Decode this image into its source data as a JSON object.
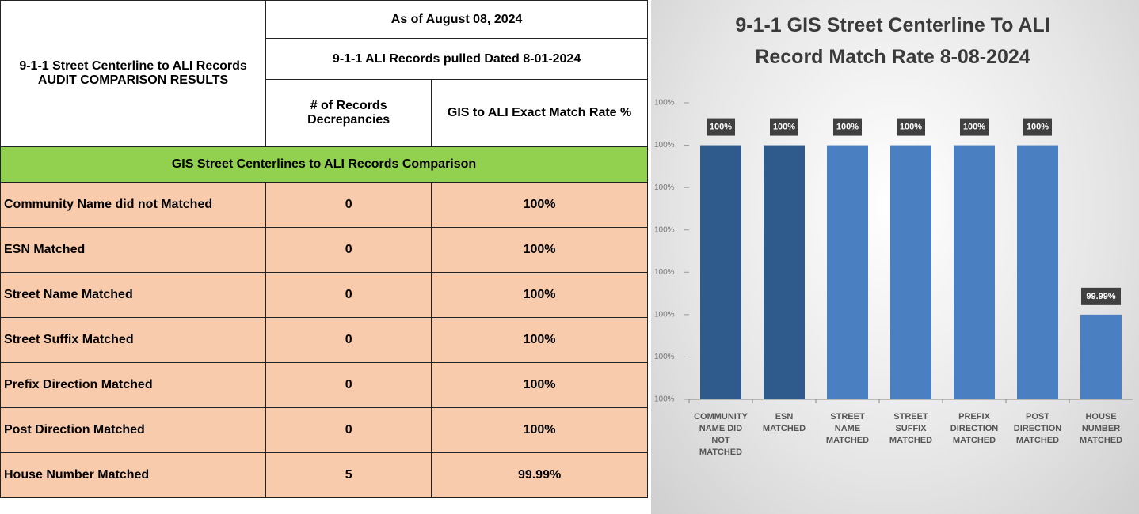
{
  "table": {
    "title": [
      "9-1-1 Street Centerline to ALI Records",
      "AUDIT COMPARISON RESULTS"
    ],
    "as_of": "As of August 08, 2024",
    "pulled": "9-1-1 ALI Records pulled Dated 8-01-2024",
    "columns": [
      "# of Records Decrepancies",
      "GIS to ALI Exact Match Rate %"
    ],
    "section": "GIS Street Centerlines to ALI Records Comparison",
    "rows": [
      [
        "Community Name did not Matched",
        "0",
        "100%"
      ],
      [
        "ESN Matched",
        "0",
        "100%"
      ],
      [
        "Street Name Matched",
        "0",
        "100%"
      ],
      [
        "Street Suffix Matched",
        "0",
        "100%"
      ],
      [
        "Prefix Direction Matched",
        "0",
        "100%"
      ],
      [
        "Post Direction Matched",
        "0",
        "100%"
      ],
      [
        "House Number Matched",
        "5",
        "99.99%"
      ]
    ]
  },
  "chart_data": {
    "type": "bar",
    "title": "9-1-1 GIS Street Centerline To ALI Record Match Rate 8-08-2024",
    "categories": [
      "COMMUNITY NAME DID NOT MATCHED",
      "ESN MATCHED",
      "STREET NAME MATCHED",
      "STREET SUFFIX MATCHED",
      "PREFIX DIRECTION MATCHED",
      "POST DIRECTION MATCHED",
      "HOUSE NUMBER MATCHED"
    ],
    "values": [
      100,
      100,
      100,
      100,
      100,
      100,
      99.99
    ],
    "value_labels": [
      "100%",
      "100%",
      "100%",
      "100%",
      "100%",
      "100%",
      "99.99%"
    ],
    "colors": [
      "#2f5b8c",
      "#2f5b8c",
      "#4a7fc2",
      "#4a7fc2",
      "#4a7fc2",
      "#4a7fc2",
      "#4a7fc2"
    ],
    "ylim": [
      99.985,
      100.0025
    ],
    "yticks": [
      {
        "value": 99.985,
        "label": "100%"
      },
      {
        "value": 99.9875,
        "label": "100%"
      },
      {
        "value": 99.99,
        "label": "100%"
      },
      {
        "value": 99.9925,
        "label": "100%"
      },
      {
        "value": 99.995,
        "label": "100%"
      },
      {
        "value": 99.9975,
        "label": "100%"
      },
      {
        "value": 100,
        "label": "100%"
      },
      {
        "value": 100.0025,
        "label": "100%"
      }
    ],
    "grid": false
  }
}
